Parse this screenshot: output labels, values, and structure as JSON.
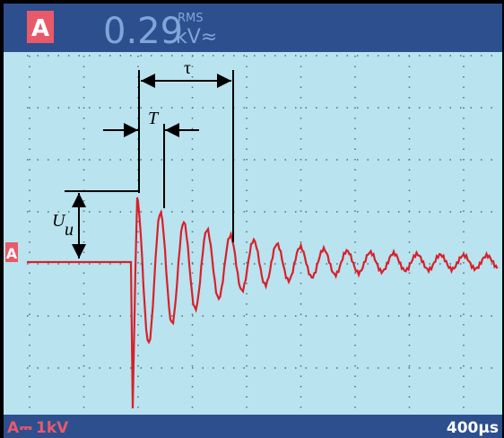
{
  "header": {
    "channel": "A",
    "reading": "0.29",
    "rms": "RMS",
    "unit": "kV≈"
  },
  "annotations": {
    "tau": "τ",
    "period": "T",
    "amplitude": "U",
    "amplitude_sub": "u"
  },
  "marker": "A",
  "footer": {
    "channel": "A",
    "coupling": "⎓",
    "scale": "1kV",
    "timebase": "400µs"
  }
}
